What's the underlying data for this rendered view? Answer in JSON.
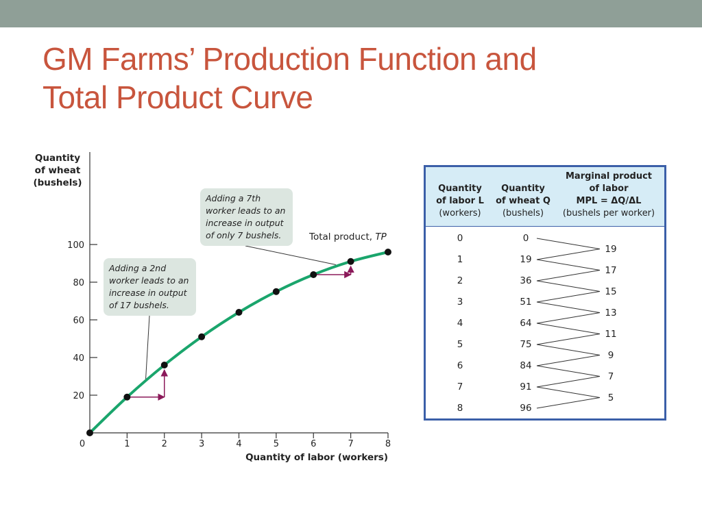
{
  "slide": {
    "title_line1": "GM Farms’ Production Function and",
    "title_line2": "Total Product Curve"
  },
  "chart_data": {
    "type": "line",
    "title": "",
    "ylabel_lines": [
      "Quantity",
      "of wheat",
      "(bushels)"
    ],
    "xlabel": "Quantity of labor (workers)",
    "x": [
      0,
      1,
      2,
      3,
      4,
      5,
      6,
      7,
      8
    ],
    "series": [
      {
        "name_prefix": "Total product, ",
        "name_abbr": "TP",
        "values": [
          0,
          19,
          36,
          51,
          64,
          75,
          84,
          91,
          96
        ]
      }
    ],
    "xlim": [
      0,
      8
    ],
    "ylim": [
      0,
      100
    ],
    "x_ticks": [
      0,
      1,
      2,
      3,
      4,
      5,
      6,
      7,
      8
    ],
    "y_ticks": [
      20,
      40,
      60,
      80,
      100
    ],
    "line_color": "#1aa56c",
    "arrow_color": "#8b1a5a",
    "grid": false,
    "annotations": [
      {
        "lines": [
          "Adding a 2nd",
          "worker leads to an",
          "increase in output",
          "of 17 bushels."
        ],
        "points_to_x": 1.5
      },
      {
        "lines": [
          "Adding a 7th",
          "worker leads to an",
          "increase in output",
          "of only 7 bushels."
        ],
        "points_to_x": 6.6
      }
    ],
    "step_arrows": [
      {
        "from_x": 1,
        "to_x": 2
      },
      {
        "from_x": 6,
        "to_x": 7
      }
    ]
  },
  "table": {
    "headers": {
      "labor": [
        "Quantity",
        "of labor L",
        "(workers)"
      ],
      "wheat": [
        "Quantity",
        "of wheat Q",
        "(bushels)"
      ],
      "mpl": [
        "Marginal product",
        "of labor",
        "MPL = ΔQ/ΔL",
        "(bushels per worker)"
      ]
    },
    "labor": [
      "0",
      "1",
      "2",
      "3",
      "4",
      "5",
      "6",
      "7",
      "8"
    ],
    "wheat": [
      "0",
      "19",
      "36",
      "51",
      "64",
      "75",
      "84",
      "91",
      "96"
    ],
    "mpl": [
      "19",
      "17",
      "15",
      "13",
      "11",
      "9",
      "7",
      "5"
    ],
    "border_color": "#3b5fa8",
    "header_bg": "#d6ecf6"
  }
}
